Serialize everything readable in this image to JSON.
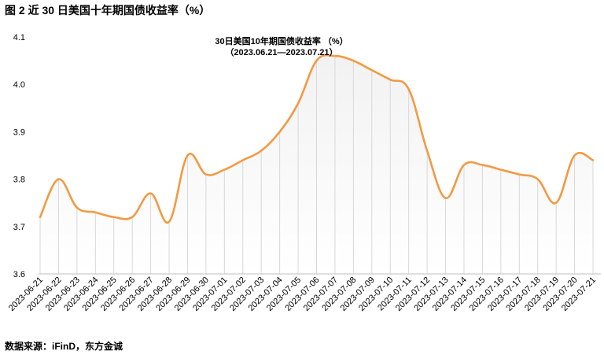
{
  "header": {
    "title": "图 2  近 30 日美国十年期国债收益率（%）"
  },
  "footer": {
    "source": "数据来源：iFinD，东方金诚"
  },
  "colors": {
    "line": "#F29A43",
    "area_top": "#F2F2F2",
    "area_bottom": "#FFFFFF",
    "drop_line": "#D8D8D8",
    "axis": "#BFBFBF"
  },
  "chart_data": {
    "type": "area",
    "title": "30日美国10年期国债收益率  （%）",
    "subtitle": "（2023.06.21—2023.07.21）",
    "xlabel": "",
    "ylabel": "",
    "ylim": [
      3.6,
      4.1
    ],
    "yticks": [
      "3.6",
      "3.7",
      "3.8",
      "3.9",
      "4.0",
      "4.1"
    ],
    "grid": false,
    "legend": "none",
    "x": [
      "2023-06-21",
      "2023-06-22",
      "2023-06-23",
      "2023-06-24",
      "2023-06-25",
      "2023-06-26",
      "2023-06-27",
      "2023-06-28",
      "2023-06-29",
      "2023-06-30",
      "2023-07-01",
      "2023-07-02",
      "2023-07-03",
      "2023-07-04",
      "2023-07-05",
      "2023-07-06",
      "2023-07-07",
      "2023-07-08",
      "2023-07-09",
      "2023-07-10",
      "2023-07-11",
      "2023-07-12",
      "2023-07-13",
      "2023-07-14",
      "2023-07-15",
      "2023-07-16",
      "2023-07-17",
      "2023-07-18",
      "2023-07-19",
      "2023-07-20",
      "2023-07-21"
    ],
    "series": [
      {
        "name": "",
        "values": [
          3.72,
          3.8,
          3.74,
          3.73,
          3.72,
          3.72,
          3.77,
          3.71,
          3.85,
          3.81,
          3.82,
          3.84,
          3.86,
          3.9,
          3.96,
          4.05,
          4.06,
          4.05,
          4.03,
          4.01,
          3.99,
          3.86,
          3.76,
          3.83,
          3.83,
          3.82,
          3.81,
          3.8,
          3.75,
          3.85,
          3.84
        ]
      }
    ]
  }
}
